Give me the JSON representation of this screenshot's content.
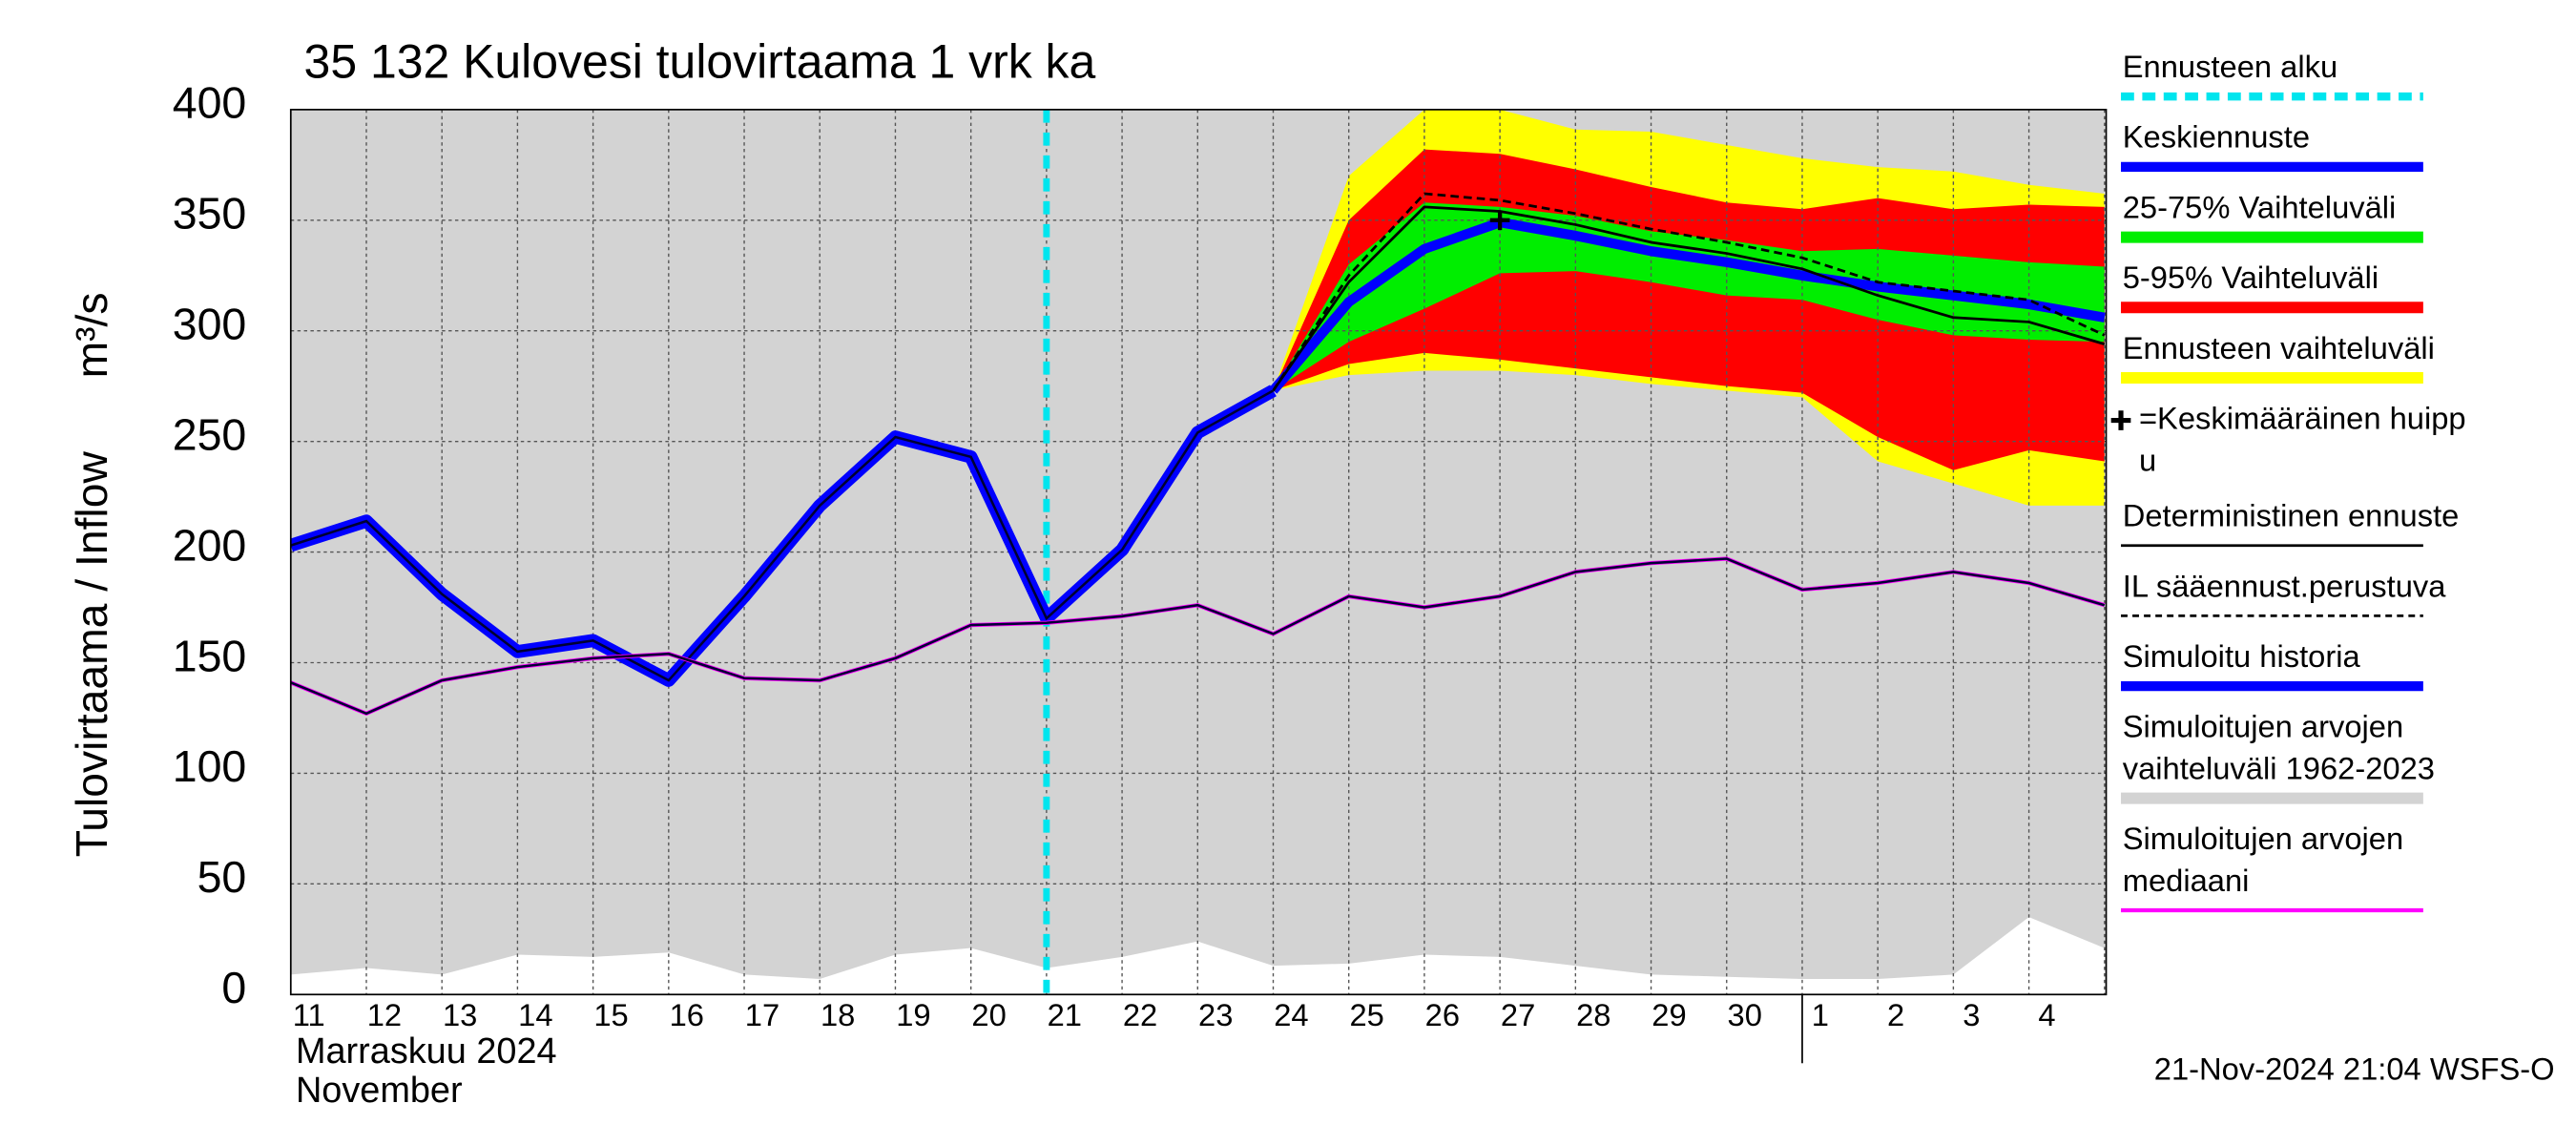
{
  "chart_data": {
    "type": "area",
    "title": "35 132 Kulovesi tulovirtaama 1 vrk ka",
    "y_label": "Tulovirtaama / Inflow",
    "y_unit": "m³/s",
    "x_label": [
      "Marraskuu 2024",
      "November"
    ],
    "footer": "21-Nov-2024 21:04 WSFS-O",
    "categories": [
      "11",
      "12",
      "13",
      "14",
      "15",
      "16",
      "17",
      "18",
      "19",
      "20",
      "21",
      "22",
      "23",
      "24",
      "25",
      "26",
      "27",
      "28",
      "29",
      "30",
      "1",
      "2",
      "3",
      "4",
      null
    ],
    "ylim": [
      0,
      400
    ],
    "yticks": [
      0,
      50,
      100,
      150,
      200,
      250,
      300,
      350,
      400
    ],
    "grid": true,
    "series": [
      {
        "name": "Ennusteen alku",
        "kind": "vline",
        "category": "21",
        "color": "#00e5ee"
      },
      {
        "name": "Keskiennuste",
        "kind": "line",
        "color": "#0000ff",
        "values": [
          null,
          null,
          null,
          null,
          null,
          null,
          null,
          null,
          null,
          null,
          null,
          null,
          null,
          273,
          313,
          337,
          349,
          343,
          336,
          331,
          325,
          320,
          316,
          312,
          306
        ]
      },
      {
        "name": "25-75% Vaihteluväli",
        "kind": "band",
        "color": "#00ee00",
        "low": [
          null,
          null,
          null,
          null,
          null,
          null,
          null,
          null,
          null,
          null,
          null,
          null,
          null,
          273,
          295,
          310,
          326,
          327,
          322,
          316,
          314,
          305,
          298,
          296,
          295
        ],
        "high": [
          null,
          null,
          null,
          null,
          null,
          null,
          null,
          null,
          null,
          null,
          null,
          null,
          null,
          273,
          330,
          358,
          356,
          352,
          345,
          341,
          336,
          337,
          334,
          331,
          329
        ]
      },
      {
        "name": "5-95% Vaihteluväli",
        "kind": "band",
        "color": "#ff0000",
        "low": [
          null,
          null,
          null,
          null,
          null,
          null,
          null,
          null,
          null,
          null,
          null,
          null,
          null,
          273,
          285,
          290,
          287,
          283,
          279,
          275,
          272,
          252,
          237,
          246,
          241
        ],
        "high": [
          null,
          null,
          null,
          null,
          null,
          null,
          null,
          null,
          null,
          null,
          null,
          null,
          null,
          273,
          350,
          382,
          380,
          373,
          365,
          358,
          355,
          360,
          355,
          357,
          356
        ]
      },
      {
        "name": "Ennusteen vaihteluväli",
        "kind": "band",
        "color": "#ffff00",
        "low": [
          null,
          null,
          null,
          null,
          null,
          null,
          null,
          null,
          null,
          null,
          null,
          null,
          null,
          273,
          280,
          282,
          282,
          280,
          276,
          273,
          270,
          241,
          231,
          221,
          221
        ],
        "high": [
          null,
          null,
          null,
          null,
          null,
          null,
          null,
          null,
          null,
          null,
          null,
          null,
          null,
          273,
          370,
          400,
          400,
          391,
          390,
          384,
          378,
          374,
          372,
          366,
          362
        ]
      },
      {
        "name": "=Keskimääräinen huipp\nu",
        "kind": "marker",
        "category": "27",
        "value": 350,
        "color": "#000000"
      },
      {
        "name": "Deterministinen ennuste",
        "kind": "line",
        "color": "#000000",
        "values": [
          null,
          null,
          null,
          null,
          null,
          null,
          null,
          null,
          null,
          null,
          null,
          null,
          null,
          273,
          322,
          356,
          354,
          348,
          340,
          335,
          328,
          316,
          306,
          304,
          294
        ]
      },
      {
        "name": "IL sääennust.perustuva",
        "kind": "dashed",
        "color": "#000000",
        "values": [
          null,
          null,
          null,
          null,
          null,
          null,
          null,
          null,
          null,
          null,
          null,
          null,
          null,
          273,
          325,
          362,
          359,
          353,
          346,
          340,
          333,
          322,
          318,
          314,
          298
        ]
      },
      {
        "name": "Simuloitu historia",
        "kind": "line",
        "color": "#0000ff",
        "values": [
          203,
          214,
          181,
          155,
          160,
          142,
          180,
          221,
          252,
          243,
          170,
          201,
          254,
          273,
          null,
          null,
          null,
          null,
          null,
          null,
          null,
          null,
          null,
          null,
          null
        ]
      },
      {
        "name": "Simuloitujen arvojen\nvaihteluväli 1962-2023",
        "kind": "band",
        "color": "#d3d3d3",
        "low": [
          9,
          12,
          9,
          18,
          17,
          19,
          9,
          7,
          18,
          21,
          12,
          17,
          24,
          13,
          14,
          18,
          17,
          13,
          9,
          8,
          7,
          7,
          9,
          35,
          21
        ],
        "high": [
          400,
          400,
          400,
          400,
          400,
          400,
          400,
          400,
          400,
          400,
          400,
          400,
          400,
          400,
          400,
          400,
          400,
          400,
          400,
          400,
          400,
          400,
          400,
          400,
          400
        ]
      },
      {
        "name": "Simuloitujen arvojen\nmediaani",
        "kind": "line",
        "color": "#ff00ff",
        "values": [
          141,
          127,
          142,
          148,
          152,
          154,
          143,
          142,
          152,
          167,
          168,
          171,
          176,
          163,
          180,
          175,
          180,
          191,
          195,
          197,
          183,
          186,
          191,
          186,
          176
        ]
      }
    ]
  }
}
